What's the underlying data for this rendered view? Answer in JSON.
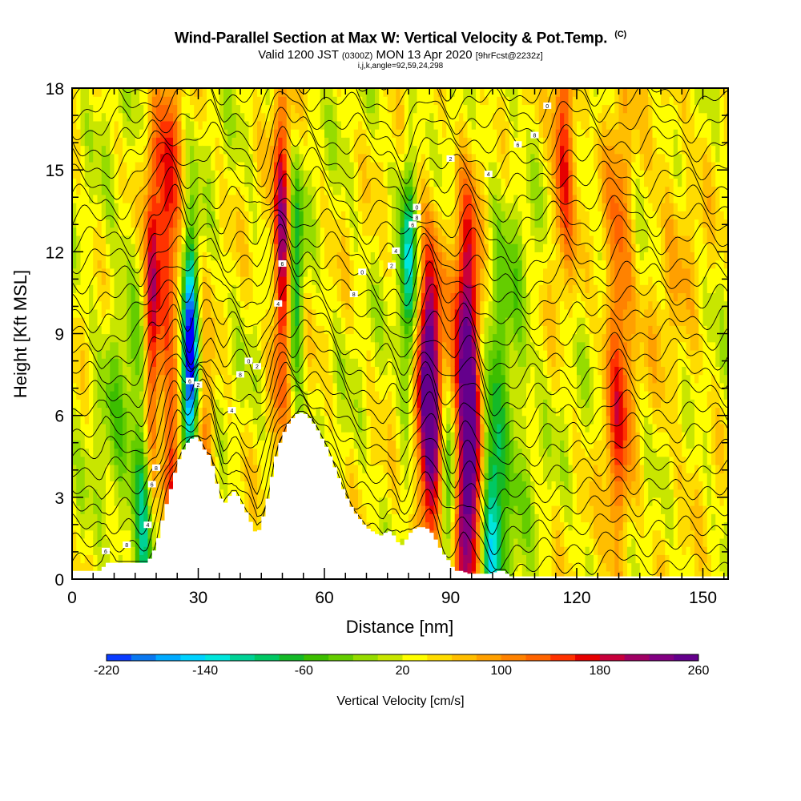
{
  "header": {
    "title": "Wind-Parallel Section at Max W: Vertical Velocity & Pot.Temp.",
    "copyright": "(C)",
    "valid_prefix": "Valid 1200 JST",
    "valid_utc": "(0300Z)",
    "valid_date": "MON 13 Apr 2020",
    "forecast": "[9hrFcst@2232z]",
    "indices": "i,j,k,angle=92,59,24,298"
  },
  "chart_data": {
    "type": "heatmap",
    "xlabel": "Distance [nm]",
    "ylabel": "Height [Kft MSL]",
    "xlim": [
      0,
      156
    ],
    "ylim": [
      0,
      18
    ],
    "x_ticks": [
      0,
      30,
      60,
      90,
      120,
      150
    ],
    "y_ticks": [
      0,
      3,
      6,
      9,
      12,
      15,
      18
    ],
    "grid": false,
    "colorbar": {
      "label": "Vertical Velocity [cm/s]",
      "placement": "bottom",
      "tick_labels": [
        "-220",
        "-140",
        "-60",
        "20",
        "100",
        "180",
        "260"
      ],
      "colors": [
        "#0000ff",
        "#0a3cff",
        "#0a78f0",
        "#00aaff",
        "#00d2ff",
        "#00e6dc",
        "#00d296",
        "#00c864",
        "#14b928",
        "#3cbe00",
        "#64cd00",
        "#96dc00",
        "#c8e600",
        "#ffff00",
        "#ffdc00",
        "#ffbe00",
        "#ffa000",
        "#ff8200",
        "#ff6400",
        "#ff3200",
        "#e60000",
        "#c8003c",
        "#a00064",
        "#820082",
        "#64008c"
      ]
    },
    "terrain_kft": [
      [
        0,
        0.3
      ],
      [
        7,
        0.3
      ],
      [
        8,
        0.6
      ],
      [
        18,
        0.6
      ],
      [
        19,
        0.9
      ],
      [
        20,
        1.2
      ],
      [
        21,
        1.8
      ],
      [
        22,
        2.5
      ],
      [
        23,
        3.0
      ],
      [
        24,
        3.6
      ],
      [
        25,
        4.2
      ],
      [
        26,
        4.6
      ],
      [
        27,
        4.9
      ],
      [
        28,
        5.1
      ],
      [
        29,
        5.2
      ],
      [
        30,
        5.2
      ],
      [
        31,
        4.9
      ],
      [
        32,
        4.6
      ],
      [
        33,
        4.5
      ],
      [
        34,
        3.8
      ],
      [
        35,
        3.2
      ],
      [
        36,
        2.7
      ],
      [
        37,
        2.9
      ],
      [
        38,
        3.2
      ],
      [
        39,
        3.2
      ],
      [
        40,
        2.9
      ],
      [
        41,
        2.6
      ],
      [
        42,
        2.3
      ],
      [
        43,
        1.9
      ],
      [
        44,
        1.6
      ],
      [
        45,
        2.0
      ],
      [
        46,
        2.6
      ],
      [
        47,
        3.3
      ],
      [
        48,
        4.2
      ],
      [
        49,
        4.8
      ],
      [
        50,
        5.2
      ],
      [
        51,
        5.6
      ],
      [
        52,
        5.8
      ],
      [
        53,
        6.0
      ],
      [
        54,
        6.1
      ],
      [
        55,
        6.1
      ],
      [
        56,
        6.0
      ],
      [
        57,
        5.8
      ],
      [
        58,
        5.6
      ],
      [
        59,
        5.3
      ],
      [
        60,
        5.0
      ],
      [
        61,
        4.7
      ],
      [
        62,
        4.3
      ],
      [
        63,
        3.9
      ],
      [
        64,
        3.5
      ],
      [
        65,
        3.1
      ],
      [
        66,
        2.8
      ],
      [
        67,
        2.5
      ],
      [
        68,
        2.3
      ],
      [
        69,
        2.1
      ],
      [
        70,
        1.9
      ],
      [
        71,
        1.8
      ],
      [
        72,
        1.7
      ],
      [
        73,
        1.6
      ],
      [
        74,
        1.6
      ],
      [
        75,
        1.8
      ],
      [
        76,
        1.7
      ],
      [
        77,
        1.5
      ],
      [
        78,
        1.2
      ],
      [
        79,
        1.3
      ],
      [
        80,
        1.6
      ],
      [
        81,
        1.8
      ],
      [
        82,
        1.9
      ],
      [
        83,
        1.9
      ],
      [
        84,
        1.9
      ],
      [
        85,
        1.8
      ],
      [
        86,
        1.6
      ],
      [
        87,
        1.3
      ],
      [
        88,
        1.0
      ],
      [
        89,
        0.8
      ],
      [
        90,
        0.6
      ],
      [
        91,
        0.3
      ],
      [
        93,
        0.3
      ],
      [
        94,
        0.2
      ],
      [
        100,
        0.2
      ],
      [
        101,
        0.3
      ],
      [
        103,
        0.3
      ],
      [
        104,
        0.1
      ],
      [
        156,
        0.1
      ]
    ],
    "w_cells": [
      {
        "x": 12,
        "z": 5.5,
        "w": -45,
        "sx": 4,
        "sz": 5
      },
      {
        "x": 17,
        "z": 2.5,
        "w": -120,
        "sx": 1.5,
        "sz": 2.5
      },
      {
        "x": 19,
        "z": 10,
        "w": 170,
        "sx": 1.2,
        "sz": 4
      },
      {
        "x": 23,
        "z": 13,
        "w": 150,
        "sx": 2.0,
        "sz": 4
      },
      {
        "x": 24,
        "z": 3.5,
        "w": 130,
        "sx": 1.5,
        "sz": 2
      },
      {
        "x": 28,
        "z": 9,
        "w": -240,
        "sx": 1.3,
        "sz": 2.5
      },
      {
        "x": 28,
        "z": 6,
        "w": -140,
        "sx": 1.5,
        "sz": 2
      },
      {
        "x": 31,
        "z": 4.5,
        "w": 110,
        "sx": 2.0,
        "sz": 2.5
      },
      {
        "x": 50,
        "z": 12,
        "w": 190,
        "sx": 1.6,
        "sz": 4
      },
      {
        "x": 53,
        "z": 11,
        "w": -130,
        "sx": 1.3,
        "sz": 3
      },
      {
        "x": 80,
        "z": 11,
        "w": -150,
        "sx": 1.3,
        "sz": 3
      },
      {
        "x": 85,
        "z": 6.5,
        "w": 270,
        "sx": 2.0,
        "sz": 4
      },
      {
        "x": 90,
        "z": 3.5,
        "w": -130,
        "sx": 1.5,
        "sz": 2
      },
      {
        "x": 94,
        "z": 6,
        "w": 290,
        "sx": 2.3,
        "sz": 5
      },
      {
        "x": 100,
        "z": 2,
        "w": -150,
        "sx": 1.8,
        "sz": 3
      },
      {
        "x": 103,
        "z": 7,
        "w": -60,
        "sx": 4,
        "sz": 5
      },
      {
        "x": 117,
        "z": 16,
        "w": 140,
        "sx": 2.0,
        "sz": 3
      },
      {
        "x": 130,
        "z": 8,
        "w": 120,
        "sx": 2.3,
        "sz": 6
      },
      {
        "x": 143,
        "z": 12,
        "w": 30,
        "sx": 5,
        "sz": 6
      }
    ],
    "theta_lines": 26,
    "theta_labels": [
      "6",
      "8",
      "4",
      "6",
      "8",
      "2",
      "4",
      "6",
      "8",
      "0",
      "2",
      "4",
      "6",
      "8",
      "0",
      "2",
      "4",
      "6",
      "8",
      "0",
      "2",
      "4",
      "6",
      "8",
      "0",
      "4"
    ]
  }
}
